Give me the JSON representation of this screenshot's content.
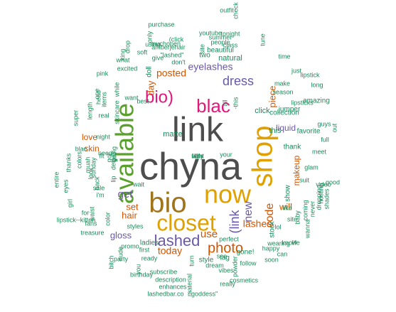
{
  "colors": {
    "big": "#4d4d4d",
    "green": "#1a8a5a",
    "orange": "#d35400",
    "purple": "#6a5aa5",
    "magenta": "#e0187a",
    "lime": "#5aa02c",
    "gold": "#e0a000",
    "brown": "#a0741a"
  },
  "words": [
    {
      "text": "chyna",
      "color": "#4d4d4d"
    },
    {
      "text": "link",
      "color": "#4d4d4d"
    },
    {
      "text": "now",
      "color": "#e0a000"
    },
    {
      "text": "bio",
      "color": "#a0741a"
    },
    {
      "text": "closet",
      "color": "#e0a000"
    },
    {
      "text": "shop",
      "color": "#e0a000"
    },
    {
      "text": "available",
      "color": "#5aa02c"
    },
    {
      "text": "blac",
      "color": "#e0187a"
    },
    {
      "text": "bio)",
      "color": "#e0187a"
    },
    {
      "text": "lashed",
      "color": "#6a5aa5"
    },
    {
      "text": "photo",
      "color": "#d35400"
    },
    {
      "text": "(link",
      "color": "#6a5aa5"
    },
    {
      "text": "new",
      "color": "#6a5aa5"
    },
    {
      "text": "code",
      "color": "#d35400"
    },
    {
      "text": "dress",
      "color": "#6a5aa5"
    },
    {
      "text": "posted",
      "color": "#d35400"
    },
    {
      "text": "eyelashes",
      "color": "#6a5aa5"
    },
    {
      "text": "get",
      "color": "#6a5aa5"
    },
    {
      "text": "hair",
      "color": "#d35400"
    },
    {
      "text": "set",
      "color": "#d35400"
    },
    {
      "text": "use",
      "color": "#d35400"
    },
    {
      "text": "lashes",
      "color": "#d35400"
    },
    {
      "text": "makeup",
      "color": "#d35400"
    },
    {
      "text": "piece",
      "color": "#d35400"
    },
    {
      "text": "will",
      "color": "#d35400"
    },
    {
      "text": "skin",
      "color": "#d35400"
    },
    {
      "text": "love",
      "color": "#d35400"
    },
    {
      "text": "today",
      "color": "#d35400"
    },
    {
      "text": "day",
      "color": "#d35400"
    },
    {
      "text": "gloss",
      "color": "#6a5aa5"
    },
    {
      "text": "liquid",
      "color": "#6a5aa5"
    },
    {
      "text": "matte",
      "color": "#1a8a5a"
    },
    {
      "text": "click",
      "color": "#1a8a5a"
    },
    {
      "text": "collection",
      "color": "#1a8a5a"
    },
    {
      "text": "natural",
      "color": "#1a8a5a"
    },
    {
      "text": "beautiful",
      "color": "#1a8a5a"
    },
    {
      "text": "two",
      "color": "#1a8a5a"
    },
    {
      "text": "doll",
      "color": "#1a8a5a"
    },
    {
      "text": "jumper",
      "color": "#1a8a5a"
    },
    {
      "text": "stock",
      "color": "#1a8a5a"
    },
    {
      "text": "show",
      "color": "#1a8a5a"
    },
    {
      "text": "this",
      "color": "#1a8a5a"
    },
    {
      "text": "thank",
      "color": "#1a8a5a"
    },
    {
      "text": "favorite",
      "color": "#1a8a5a"
    },
    {
      "text": "amazing",
      "color": "#1a8a5a"
    },
    {
      "text": "style",
      "color": "#1a8a5a"
    },
    {
      "text": "tag",
      "color": "#1a8a5a"
    },
    {
      "text": "gone!",
      "color": "#1a8a5a"
    },
    {
      "text": "ladies",
      "color": "#1a8a5a"
    },
    {
      "text": "first",
      "color": "#1a8a5a"
    },
    {
      "text": "party",
      "color": "#1a8a5a"
    },
    {
      "text": "ready",
      "color": "#1a8a5a"
    },
    {
      "text": "subscribe",
      "color": "#1a8a5a"
    },
    {
      "text": "description",
      "color": "#1a8a5a"
    },
    {
      "text": "lashedbar.co",
      "color": "#1a8a5a"
    },
    {
      "text": "enhances",
      "color": "#1a8a5a"
    },
    {
      "text": "\"goddess\"",
      "color": "#1a8a5a"
    },
    {
      "text": "really",
      "color": "#1a8a5a"
    },
    {
      "text": "cosmetics",
      "color": "#1a8a5a"
    },
    {
      "text": "vibes",
      "color": "#1a8a5a"
    },
    {
      "text": "follow",
      "color": "#1a8a5a"
    },
    {
      "text": "soon",
      "color": "#1a8a5a"
    },
    {
      "text": "happy",
      "color": "#1a8a5a"
    },
    {
      "text": "dream",
      "color": "#1a8a5a"
    },
    {
      "text": "powder",
      "color": "#1a8a5a"
    },
    {
      "text": "wearing",
      "color": "#1a8a5a"
    },
    {
      "text": "lol",
      "color": "#1a8a5a"
    },
    {
      "text": "baby",
      "color": "#1a8a5a"
    },
    {
      "text": "coming",
      "color": "#1a8a5a"
    },
    {
      "text": "wanna",
      "color": "#1a8a5a"
    },
    {
      "text": "video",
      "color": "#1a8a5a"
    },
    {
      "text": "glam",
      "color": "#1a8a5a"
    },
    {
      "text": "full",
      "color": "#1a8a5a"
    },
    {
      "text": "meet",
      "color": "#1a8a5a"
    },
    {
      "text": "guys",
      "color": "#1a8a5a"
    },
    {
      "text": "good",
      "color": "#1a8a5a"
    },
    {
      "text": "shades",
      "color": "#1a8a5a"
    },
    {
      "text": "hosting",
      "color": "#1a8a5a"
    },
    {
      "text": "never",
      "color": "#1a8a5a"
    },
    {
      "text": "dropping",
      "color": "#1a8a5a"
    },
    {
      "text": "long",
      "color": "#1a8a5a"
    },
    {
      "text": "lipstick",
      "color": "#1a8a5a"
    },
    {
      "text": "lipsticks",
      "color": "#1a8a5a"
    },
    {
      "text": "season",
      "color": "#1a8a5a"
    },
    {
      "text": "make",
      "color": "#1a8a5a"
    },
    {
      "text": "just",
      "color": "#1a8a5a"
    },
    {
      "text": "time",
      "color": "#1a8a5a"
    },
    {
      "text": "outfit",
      "color": "#1a8a5a"
    },
    {
      "text": "tonight",
      "color": "#1a8a5a"
    },
    {
      "text": "summer",
      "color": "#1a8a5a"
    },
    {
      "text": "youtube",
      "color": "#1a8a5a"
    },
    {
      "text": "people",
      "color": "#1a8a5a"
    },
    {
      "text": "class",
      "color": "#1a8a5a"
    },
    {
      "text": "site",
      "color": "#1a8a5a"
    },
    {
      "text": "purchase",
      "color": "#1a8a5a"
    },
    {
      "text": "(click",
      "color": "#1a8a5a"
    },
    {
      "text": "muchopen",
      "color": "#1a8a5a"
    },
    {
      "text": "amberjehair",
      "color": "#1a8a5a"
    },
    {
      "text": "only",
      "color": "#1a8a5a"
    },
    {
      "text": "soft",
      "color": "#1a8a5a"
    },
    {
      "text": "using",
      "color": "#1a8a5a"
    },
    {
      "text": "give",
      "color": "#1a8a5a"
    },
    {
      "text": "\"lashed\"",
      "color": "#1a8a5a"
    },
    {
      "text": "don't",
      "color": "#1a8a5a"
    },
    {
      "text": "best",
      "color": "#1a8a5a"
    },
    {
      "text": "drop",
      "color": "#1a8a5a"
    },
    {
      "text": "what",
      "color": "#1a8a5a"
    },
    {
      "text": "excited",
      "color": "#1a8a5a"
    },
    {
      "text": "king",
      "color": "#1a8a5a"
    },
    {
      "text": "pink",
      "color": "#1a8a5a"
    },
    {
      "text": "one",
      "color": "#1a8a5a"
    },
    {
      "text": "head",
      "color": "#1a8a5a"
    },
    {
      "text": "length",
      "color": "#1a8a5a"
    },
    {
      "text": "skincare",
      "color": "#1a8a5a"
    },
    {
      "text": "while",
      "color": "#1a8a5a"
    },
    {
      "text": "want",
      "color": "#1a8a5a"
    },
    {
      "text": "details",
      "color": "#1a8a5a"
    },
    {
      "text": "fit",
      "color": "#1a8a5a"
    },
    {
      "text": "items",
      "color": "#1a8a5a"
    },
    {
      "text": "real",
      "color": "#1a8a5a"
    },
    {
      "text": "super",
      "color": "#1a8a5a"
    },
    {
      "text": "blac",
      "color": "#1a8a5a"
    },
    {
      "text": "muah",
      "color": "#1a8a5a"
    },
    {
      "text": "colors",
      "color": "#1a8a5a"
    },
    {
      "text": "thanks",
      "color": "#1a8a5a"
    },
    {
      "text": "sunday",
      "color": "#1a8a5a"
    },
    {
      "text": "night",
      "color": "#1a8a5a"
    },
    {
      "text": "going",
      "color": "#1a8a5a"
    },
    {
      "text": "need",
      "color": "#1a8a5a"
    },
    {
      "text": "got",
      "color": "#1a8a5a"
    },
    {
      "text": "back",
      "color": "#1a8a5a"
    },
    {
      "text": "lip",
      "color": "#1a8a5a"
    },
    {
      "text": "sale",
      "color": "#1a8a5a"
    },
    {
      "text": "i'm",
      "color": "#1a8a5a"
    },
    {
      "text": "look",
      "color": "#1a8a5a"
    },
    {
      "text": "entire",
      "color": "#1a8a5a"
    },
    {
      "text": "eyes",
      "color": "#1a8a5a"
    },
    {
      "text": "girl",
      "color": "#1a8a5a"
    },
    {
      "text": "for",
      "color": "#1a8a5a"
    },
    {
      "text": "lipstick--kitten",
      "color": "#1a8a5a"
    },
    {
      "text": "fans",
      "color": "#1a8a5a"
    },
    {
      "text": "treasure",
      "color": "#1a8a5a"
    },
    {
      "text": "waist",
      "color": "#1a8a5a"
    },
    {
      "text": "color",
      "color": "#1a8a5a"
    },
    {
      "text": "promo",
      "color": "#1a8a5a"
    },
    {
      "text": "bitch",
      "color": "#1a8a5a"
    },
    {
      "text": "nude",
      "color": "#1a8a5a"
    },
    {
      "text": "you",
      "color": "#1a8a5a"
    },
    {
      "text": "birthday",
      "color": "#1a8a5a"
    },
    {
      "text": "material",
      "color": "#1a8a5a"
    },
    {
      "text": "turn",
      "color": "#1a8a5a"
    },
    {
      "text": "your",
      "color": "#1a8a5a"
    },
    {
      "text": "wait",
      "color": "#1a8a5a"
    },
    {
      "text": "styles",
      "color": "#1a8a5a"
    },
    {
      "text": "perfect",
      "color": "#1a8a5a"
    },
    {
      "text": "see",
      "color": "#1a8a5a"
    },
    {
      "text": "can",
      "color": "#1a8a5a"
    },
    {
      "text": "know",
      "color": "#1a8a5a"
    },
    {
      "text": "life",
      "color": "#1a8a5a"
    },
    {
      "text": "-this",
      "color": "#1a8a5a"
    },
    {
      "text": "all",
      "color": "#1a8a5a"
    },
    {
      "text": "site",
      "color": "#1a8a5a"
    },
    {
      "text": "check",
      "color": "#1a8a5a"
    },
    {
      "text": "tune",
      "color": "#1a8a5a"
    },
    {
      "text": "out",
      "color": "#1a8a5a"
    },
    {
      "text": "like",
      "color": "#1a8a5a"
    },
    {
      "text": "suit",
      "color": "#1a8a5a"
    },
    {
      "text": "face",
      "color": "#1a8a5a"
    },
    {
      "text": "right",
      "color": "#1a8a5a"
    },
    {
      "text": "way",
      "color": "#1a8a5a"
    },
    {
      "text": "lit",
      "color": "#1a8a5a"
    },
    {
      "text": "!!!",
      "color": "#1a8a5a"
    }
  ]
}
